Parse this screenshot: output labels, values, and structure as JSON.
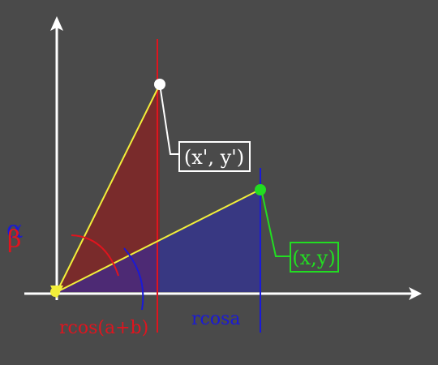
{
  "diagram": {
    "background": "#4a4a4a",
    "colors": {
      "axis": "#ffffff",
      "red": "#e0141e",
      "blue": "#1a1ad6",
      "yellow": "#f2ef3a",
      "green": "#22dd22",
      "white": "#ffffff"
    },
    "labels": {
      "rotated_point": "(x', y')",
      "original_point": "(x,y)",
      "rcos_ab": "rcos(a+b)",
      "rcos_a": "rcosa",
      "alpha": "α",
      "beta": "β"
    }
  }
}
